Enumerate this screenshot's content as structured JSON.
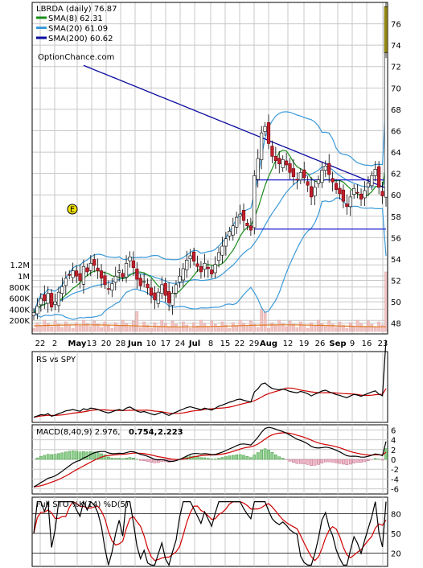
{
  "chart_data": [
    {
      "type": "candlestick",
      "panel": "price",
      "ticker_label": "LBRDA (daily) 76.87",
      "watermark": "OptionChance.com",
      "yticks": [
        48,
        50,
        52,
        54,
        56,
        58,
        60,
        62,
        64,
        66,
        68,
        70,
        72,
        74,
        76
      ],
      "ylim": [
        47,
        78
      ],
      "xticks": [
        "22",
        "2",
        "May",
        "13",
        "20",
        "28",
        "Jun",
        "10",
        "17",
        "24",
        "Jul",
        "8",
        "15",
        "22",
        "29",
        "Aug",
        "12",
        "19",
        "26",
        "Sep",
        "9",
        "16",
        "23"
      ],
      "legend": [
        {
          "label": "SMA(8) 62.31",
          "color": "#1a8c1a"
        },
        {
          "label": "SMA(20) 61.09",
          "color": "#3a9ad9"
        },
        {
          "label": "SMA(200) 60.62",
          "color": "#0a0aa0"
        }
      ],
      "earnings_marker": "E",
      "close": [
        49.0,
        49.6,
        50.3,
        50.1,
        50.8,
        49.5,
        50.0,
        50.9,
        51.4,
        52.2,
        52.5,
        52.9,
        52.4,
        52.0,
        53.3,
        52.8,
        53.6,
        53.4,
        52.9,
        52.2,
        51.6,
        51.2,
        51.7,
        52.4,
        52.9,
        52.3,
        53.6,
        54.2,
        53.2,
        52.1,
        51.5,
        51.9,
        51.3,
        50.6,
        50.2,
        50.9,
        51.6,
        50.6,
        49.9,
        50.8,
        51.6,
        52.4,
        53.1,
        53.9,
        54.3,
        53.8,
        53.3,
        52.8,
        53.6,
        53.1,
        52.6,
        53.5,
        54.6,
        55.2,
        55.9,
        56.6,
        57.1,
        57.9,
        58.2,
        57.6,
        57.1,
        56.7,
        61.8,
        63.4,
        65.8,
        66.4,
        64.8,
        63.6,
        63.2,
        62.9,
        63.3,
        62.8,
        62.1,
        61.7,
        61.4,
        62.1,
        61.6,
        60.9,
        59.8,
        60.7,
        61.4,
        62.3,
        62.7,
        61.9,
        61.2,
        60.5,
        60.1,
        59.4,
        58.9,
        59.8,
        60.6,
        60.2,
        59.6,
        60.4,
        61.1,
        61.8,
        62.4,
        60.7,
        59.9,
        76.87
      ],
      "volume_yticks": [
        "200K",
        "400K",
        "600K",
        "800K",
        "1M",
        "1.2M"
      ]
    },
    {
      "type": "line",
      "panel": "rs",
      "title": "RS vs SPY",
      "series": [
        {
          "name": "RS",
          "color": "#000000"
        },
        {
          "name": "RS average",
          "color": "#d00000"
        }
      ]
    },
    {
      "type": "bar+line",
      "panel": "macd",
      "title": "MACD(8,40,9) 2.976,",
      "values_label": [
        "0.754,",
        "2.223"
      ],
      "yticks": [
        6,
        4,
        2,
        0,
        -2,
        -4,
        -6
      ],
      "ylim": [
        -7,
        7
      ]
    },
    {
      "type": "line",
      "panel": "stochastic",
      "title": "Full STO %K(14) %D(5)",
      "yticks": [
        80,
        50,
        20
      ],
      "ylim": [
        0,
        100
      ]
    }
  ]
}
